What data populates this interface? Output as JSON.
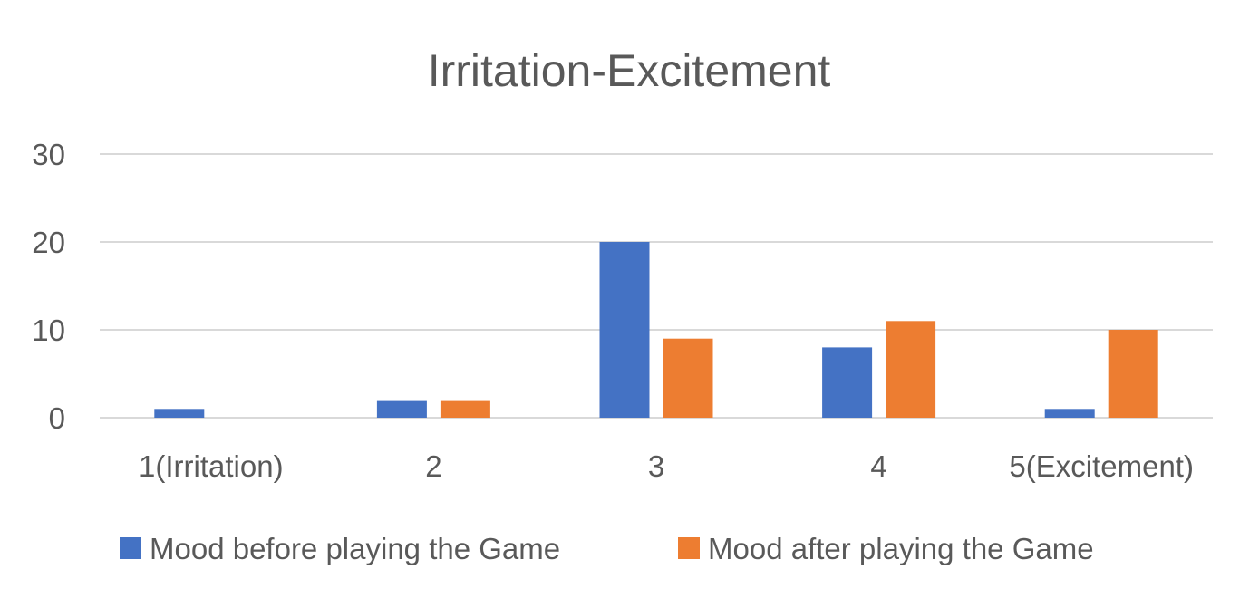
{
  "chart_data": {
    "type": "bar",
    "title": "Irritation-Excitement",
    "xlabel": "",
    "ylabel": "",
    "categories": [
      "1(Irritation)",
      "2",
      "3",
      "4",
      "5(Excitement)"
    ],
    "series": [
      {
        "name": "Mood before playing the Game",
        "color": "#4472C4",
        "values": [
          1,
          2,
          20,
          8,
          1
        ]
      },
      {
        "name": "Mood after playing the Game",
        "color": "#ED7D31",
        "values": [
          0,
          2,
          9,
          11,
          10
        ]
      }
    ],
    "ylim": [
      0,
      30
    ],
    "yticks": [
      0,
      10,
      20,
      30
    ],
    "grid": true,
    "legend": "bottom"
  }
}
